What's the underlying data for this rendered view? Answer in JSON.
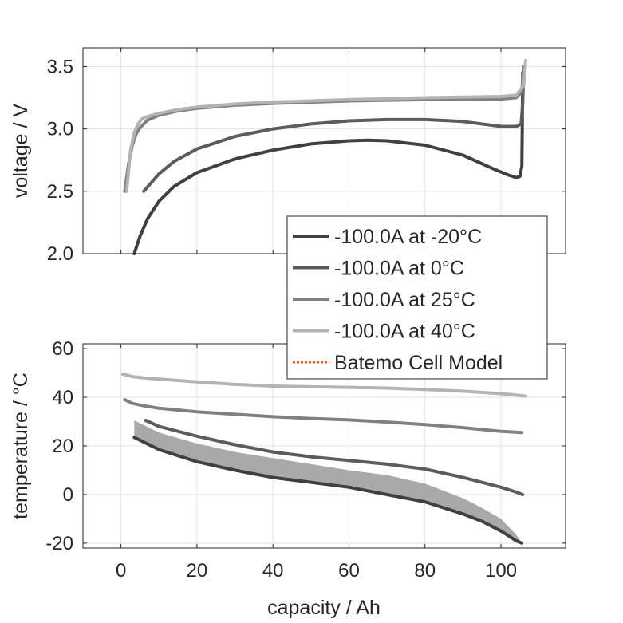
{
  "chart_data": [
    {
      "type": "line",
      "title": "",
      "xlabel": "",
      "ylabel": "voltage / V",
      "xlim": [
        -10,
        117
      ],
      "ylim": [
        2.0,
        3.65
      ],
      "yticks": [
        2.0,
        2.5,
        3.0,
        3.5
      ],
      "ytick_labels": [
        "2.0",
        "2.5",
        "3.0",
        "3.5"
      ],
      "xticks": [
        0,
        20,
        40,
        60,
        80,
        100
      ],
      "grid": true,
      "series": [
        {
          "name": "-100.0A at -20°C",
          "color": "#404040",
          "x": [
            3.5,
            5,
            7,
            10,
            14,
            20,
            30,
            40,
            50,
            60,
            65,
            70,
            80,
            90,
            98,
            102,
            104,
            105,
            105.5,
            105.6,
            105.7
          ],
          "y": [
            2.0,
            2.14,
            2.28,
            2.42,
            2.54,
            2.65,
            2.76,
            2.83,
            2.88,
            2.905,
            2.91,
            2.905,
            2.87,
            2.79,
            2.68,
            2.63,
            2.61,
            2.62,
            2.7,
            3.0,
            3.45
          ]
        },
        {
          "name": "-100.0A at 0°C",
          "color": "#5c5c5c",
          "x": [
            6,
            8,
            10,
            14,
            20,
            30,
            40,
            50,
            60,
            70,
            80,
            90,
            100,
            104,
            105.3,
            105.7,
            106
          ],
          "y": [
            2.5,
            2.57,
            2.64,
            2.74,
            2.84,
            2.94,
            3.0,
            3.04,
            3.065,
            3.075,
            3.075,
            3.06,
            3.02,
            3.02,
            3.04,
            3.2,
            3.48
          ]
        },
        {
          "name": "-100.0A at 25°C",
          "color": "#808080",
          "x": [
            1,
            2,
            3,
            4,
            5,
            7,
            10,
            15,
            20,
            30,
            40,
            60,
            80,
            100,
            104,
            105.5,
            106
          ],
          "y": [
            2.5,
            2.72,
            2.87,
            2.96,
            3.01,
            3.07,
            3.11,
            3.145,
            3.165,
            3.19,
            3.205,
            3.225,
            3.235,
            3.24,
            3.25,
            3.3,
            3.5
          ]
        },
        {
          "name": "-100.0A at 40°C",
          "color": "#b3b3b3",
          "x": [
            1.5,
            2.5,
            3.5,
            4.5,
            5.5,
            7,
            10,
            15,
            20,
            30,
            40,
            60,
            80,
            100,
            104,
            106,
            106.5
          ],
          "y": [
            2.5,
            2.82,
            2.97,
            3.04,
            3.08,
            3.1,
            3.125,
            3.155,
            3.175,
            3.2,
            3.215,
            3.235,
            3.25,
            3.26,
            3.27,
            3.35,
            3.55
          ]
        }
      ]
    },
    {
      "type": "area",
      "title": "",
      "xlabel": "capacity / Ah",
      "ylabel": "temperature / °C",
      "xlim": [
        -10,
        117
      ],
      "ylim": [
        -22,
        62
      ],
      "yticks": [
        -20,
        0,
        20,
        40,
        60
      ],
      "ytick_labels": [
        "-20",
        "0",
        "20",
        "40",
        "60"
      ],
      "xticks": [
        0,
        20,
        40,
        60,
        80,
        100
      ],
      "xtick_labels": [
        "0",
        "20",
        "40",
        "60",
        "80",
        "100"
      ],
      "grid": true,
      "band": {
        "color": "#a9a9a9",
        "x": [
          3.5,
          10,
          20,
          30,
          40,
          50,
          60,
          70,
          80,
          90,
          95,
          100,
          104,
          105.5
        ],
        "lower": [
          23.5,
          18.5,
          13.5,
          10,
          7,
          5,
          3,
          0,
          -3,
          -8,
          -11,
          -15,
          -19,
          -20
        ],
        "upper": [
          30.5,
          25.5,
          21,
          17.5,
          15,
          12.5,
          10,
          8,
          4.5,
          -1.5,
          -5.5,
          -10,
          -16.5,
          -20
        ]
      },
      "series": [
        {
          "name": "-100.0A at -20°C",
          "color": "#404040",
          "x": [
            3.5,
            10,
            20,
            30,
            40,
            50,
            60,
            70,
            80,
            90,
            95,
            100,
            104,
            105.5
          ],
          "y": [
            23.5,
            18.5,
            13.5,
            10,
            7,
            5,
            3,
            0,
            -3,
            -8,
            -11,
            -15,
            -19,
            -20
          ]
        },
        {
          "name": "-100.0A at 0°C",
          "color": "#5c5c5c",
          "x": [
            6.5,
            10,
            20,
            30,
            40,
            50,
            60,
            70,
            80,
            90,
            95,
            100,
            104,
            105.7
          ],
          "y": [
            30.5,
            28,
            24,
            20.5,
            17.5,
            15.5,
            14,
            12.5,
            10.5,
            7,
            5,
            3,
            1,
            0
          ]
        },
        {
          "name": "-100.0A at 25°C",
          "color": "#808080",
          "x": [
            1,
            3,
            6,
            10,
            20,
            30,
            40,
            50,
            60,
            70,
            80,
            90,
            100,
            105.5
          ],
          "y": [
            39,
            37.5,
            36.5,
            35.5,
            34,
            33,
            32,
            31.3,
            30.7,
            29.8,
            28.8,
            27.5,
            26,
            25.5
          ]
        },
        {
          "name": "-100.0A at 40°C",
          "color": "#b3b3b3",
          "x": [
            0.5,
            3,
            6,
            10,
            20,
            30,
            40,
            50,
            60,
            70,
            80,
            90,
            100,
            106.5
          ],
          "y": [
            49.5,
            48.5,
            48,
            47.5,
            46.3,
            45.3,
            44.6,
            44.3,
            44.1,
            43.8,
            43.2,
            42.5,
            41.5,
            40.5
          ]
        }
      ]
    }
  ],
  "legend": {
    "placement": "center-right",
    "entries": [
      {
        "label": "-100.0A at -20°C",
        "color": "#404040",
        "style": "solid"
      },
      {
        "label": "-100.0A at 0°C",
        "color": "#5c5c5c",
        "style": "solid"
      },
      {
        "label": "-100.0A at 25°C",
        "color": "#808080",
        "style": "solid"
      },
      {
        "label": "-100.0A at 40°C",
        "color": "#b3b3b3",
        "style": "solid"
      },
      {
        "label": "Batemo Cell Model",
        "color": "#e8601c",
        "style": "dotted"
      }
    ]
  }
}
